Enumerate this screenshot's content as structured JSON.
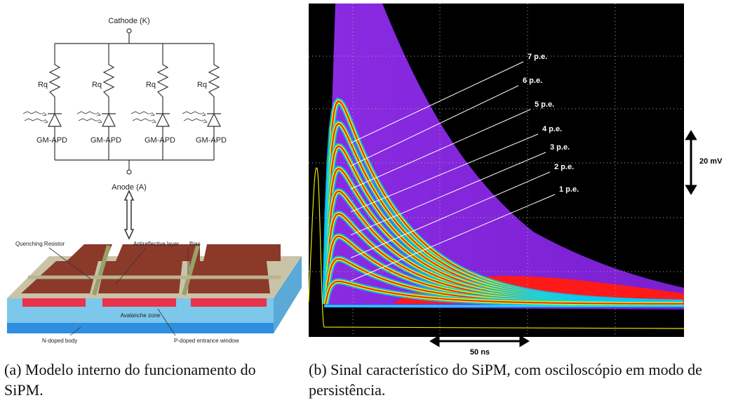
{
  "left_panel": {
    "circuit": {
      "cathode_label": "Cathode (K)",
      "anode_label": "Anode (A)",
      "branches": [
        {
          "resistor": "Rq",
          "diode": "GM-APD"
        },
        {
          "resistor": "Rq",
          "diode": "GM-APD"
        },
        {
          "resistor": "Rq",
          "diode": "GM-APD"
        },
        {
          "resistor": "Rq",
          "diode": "GM-APD"
        }
      ]
    },
    "cross_section": {
      "quenching_resistor": "Quenching Resistor",
      "antireflective_layer": "Antireflective layer",
      "bias": "Bias",
      "avalanche_zone": "Avalanche zone",
      "n_doped": "N-doped body",
      "p_doped": "P-doped entrance window"
    },
    "caption": "(a) Modelo interno do funcionamento do SiPM."
  },
  "right_panel": {
    "pe_labels": [
      "7 p.e.",
      "6 p.e.",
      "5 p.e.",
      "4 p.e.",
      "3 p.e.",
      "2 p.e.",
      "1 p.e."
    ],
    "voltage_scale": "20 mV",
    "time_scale": "50 ns",
    "caption": "(b) Sinal característico do SiPM, com osciloscópio em modo de persistência."
  }
}
